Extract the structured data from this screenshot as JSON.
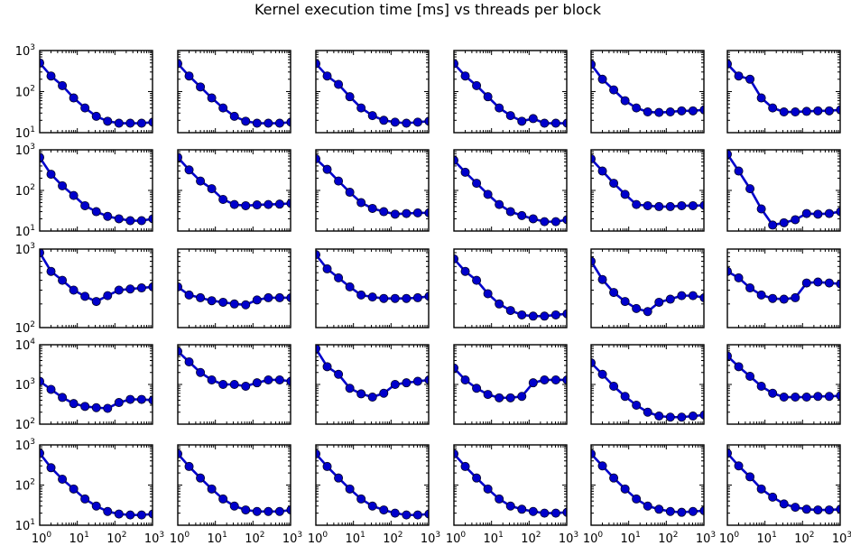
{
  "title": "Kernel execution time [ms] vs threads per block",
  "chart_data": {
    "type": "line",
    "title": "Kernel execution time [ms] vs threads per block",
    "x_scale": "log",
    "y_scale": "log",
    "xlim": [
      1,
      1000
    ],
    "x": [
      1,
      2,
      4,
      8,
      16,
      32,
      64,
      128,
      256,
      512,
      1024
    ],
    "x_tick_labels": [
      "10^0",
      "10^1",
      "10^2",
      "10^3"
    ],
    "series_color": "#0000cc",
    "rows": [
      {
        "ylim": [
          10,
          1000
        ],
        "y_tick_labels": [
          "10^1",
          "10^2",
          "10^3"
        ]
      },
      {
        "ylim": [
          10,
          1000
        ],
        "y_tick_labels": [
          "10^1",
          "10^2",
          "10^3"
        ]
      },
      {
        "ylim": [
          100,
          1000
        ],
        "y_tick_labels": [
          "10^2",
          "10^3"
        ]
      },
      {
        "ylim": [
          100,
          10000
        ],
        "y_tick_labels": [
          "10^2",
          "10^3",
          "10^4"
        ]
      },
      {
        "ylim": [
          10,
          1000
        ],
        "y_tick_labels": [
          "10^1",
          "10^2",
          "10^3"
        ]
      }
    ],
    "panels": [
      [
        {
          "y": [
            500,
            240,
            140,
            70,
            40,
            25,
            19,
            17,
            17,
            17,
            18
          ]
        },
        {
          "y": [
            480,
            240,
            130,
            70,
            40,
            25,
            19,
            17,
            17,
            17,
            18
          ]
        },
        {
          "y": [
            480,
            240,
            150,
            75,
            40,
            26,
            20,
            18,
            17,
            18,
            19
          ]
        },
        {
          "y": [
            480,
            240,
            140,
            75,
            40,
            26,
            19,
            22,
            17,
            17,
            17
          ]
        },
        {
          "y": [
            460,
            200,
            110,
            60,
            40,
            32,
            31,
            32,
            34,
            34,
            36
          ]
        },
        {
          "y": [
            470,
            240,
            200,
            70,
            40,
            32,
            32,
            33,
            34,
            34,
            36
          ]
        }
      ],
      [
        {
          "y": [
            650,
            250,
            130,
            75,
            42,
            30,
            23,
            20,
            18,
            18,
            20
          ]
        },
        {
          "y": [
            650,
            320,
            170,
            110,
            60,
            45,
            42,
            44,
            45,
            46,
            48
          ]
        },
        {
          "y": [
            600,
            330,
            170,
            90,
            50,
            36,
            30,
            26,
            27,
            28,
            28
          ]
        },
        {
          "y": [
            550,
            280,
            150,
            80,
            45,
            30,
            24,
            20,
            17,
            17,
            19
          ]
        },
        {
          "y": [
            600,
            300,
            150,
            80,
            45,
            42,
            40,
            40,
            42,
            42,
            43
          ]
        },
        {
          "y": [
            780,
            300,
            110,
            35,
            14,
            16,
            19,
            27,
            26,
            27,
            30
          ]
        }
      ],
      [
        {
          "y": [
            900,
            520,
            400,
            300,
            250,
            215,
            255,
            300,
            310,
            320,
            330
          ]
        },
        {
          "y": [
            330,
            260,
            240,
            220,
            210,
            200,
            195,
            225,
            240,
            240,
            240
          ]
        },
        {
          "y": [
            850,
            560,
            430,
            330,
            260,
            245,
            235,
            235,
            235,
            240,
            250
          ]
        },
        {
          "y": [
            750,
            520,
            400,
            270,
            200,
            165,
            145,
            140,
            140,
            145,
            150
          ]
        },
        {
          "y": [
            700,
            410,
            280,
            215,
            175,
            160,
            210,
            230,
            255,
            255,
            240
          ]
        },
        {
          "y": [
            520,
            430,
            320,
            260,
            235,
            230,
            240,
            370,
            380,
            370,
            360
          ]
        }
      ],
      [
        {
          "y": [
            1200,
            750,
            470,
            330,
            280,
            260,
            250,
            350,
            420,
            420,
            400
          ]
        },
        {
          "y": [
            6800,
            3700,
            2000,
            1300,
            1000,
            1000,
            900,
            1100,
            1300,
            1300,
            1200
          ]
        },
        {
          "y": [
            8000,
            2800,
            1800,
            800,
            580,
            480,
            600,
            1000,
            1100,
            1200,
            1300
          ]
        },
        {
          "y": [
            2600,
            1300,
            800,
            560,
            460,
            460,
            500,
            1100,
            1300,
            1300,
            1300
          ]
        },
        {
          "y": [
            3500,
            1800,
            900,
            500,
            300,
            200,
            160,
            150,
            150,
            160,
            170
          ]
        },
        {
          "y": [
            5200,
            2800,
            1600,
            900,
            600,
            480,
            480,
            480,
            500,
            500,
            520
          ]
        }
      ],
      [
        {
          "y": [
            620,
            270,
            140,
            80,
            45,
            30,
            22,
            19,
            18,
            18,
            19
          ]
        },
        {
          "y": [
            600,
            290,
            150,
            80,
            45,
            30,
            24,
            22,
            22,
            22,
            24
          ]
        },
        {
          "y": [
            600,
            290,
            150,
            80,
            45,
            30,
            24,
            20,
            18,
            18,
            19
          ]
        },
        {
          "y": [
            600,
            290,
            150,
            80,
            45,
            30,
            25,
            22,
            20,
            20,
            21
          ]
        },
        {
          "y": [
            600,
            300,
            150,
            80,
            45,
            30,
            25,
            22,
            21,
            22,
            23
          ]
        },
        {
          "y": [
            620,
            300,
            160,
            80,
            50,
            34,
            28,
            25,
            24,
            24,
            25
          ]
        }
      ]
    ]
  }
}
